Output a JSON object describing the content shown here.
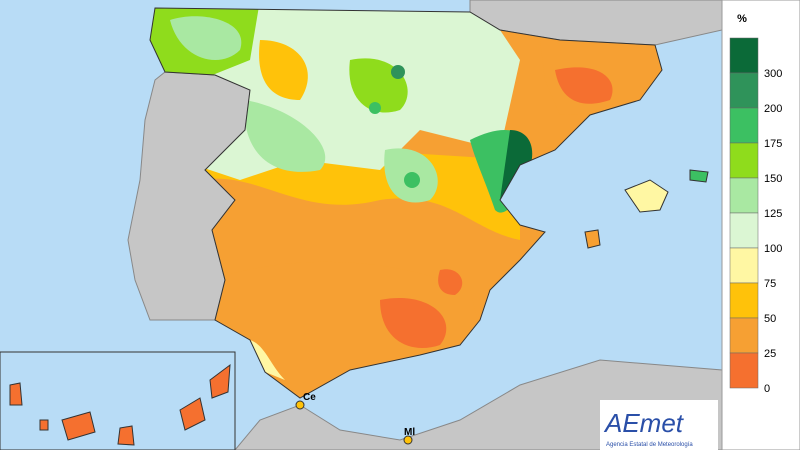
{
  "legend": {
    "title": "%",
    "items": [
      {
        "label": "300",
        "color": "#0b6a38"
      },
      {
        "label": "200",
        "color": "#2f935a"
      },
      {
        "label": "175",
        "color": "#3cc062"
      },
      {
        "label": "150",
        "color": "#8fdc1c"
      },
      {
        "label": "125",
        "color": "#a9e8a2"
      },
      {
        "label": "100",
        "color": "#dbf6d3"
      },
      {
        "label": "75",
        "color": "#fff7a3"
      },
      {
        "label": "50",
        "color": "#ffc20a"
      },
      {
        "label": "25",
        "color": "#f6a033"
      },
      {
        "label": "0",
        "color": "#f5702f"
      }
    ]
  },
  "markers": [
    {
      "label": "Ce"
    },
    {
      "label": "Ml"
    }
  ],
  "logo": {
    "name": "AEmet",
    "subtitle": "Agencia Estatal de Meteorología"
  }
}
